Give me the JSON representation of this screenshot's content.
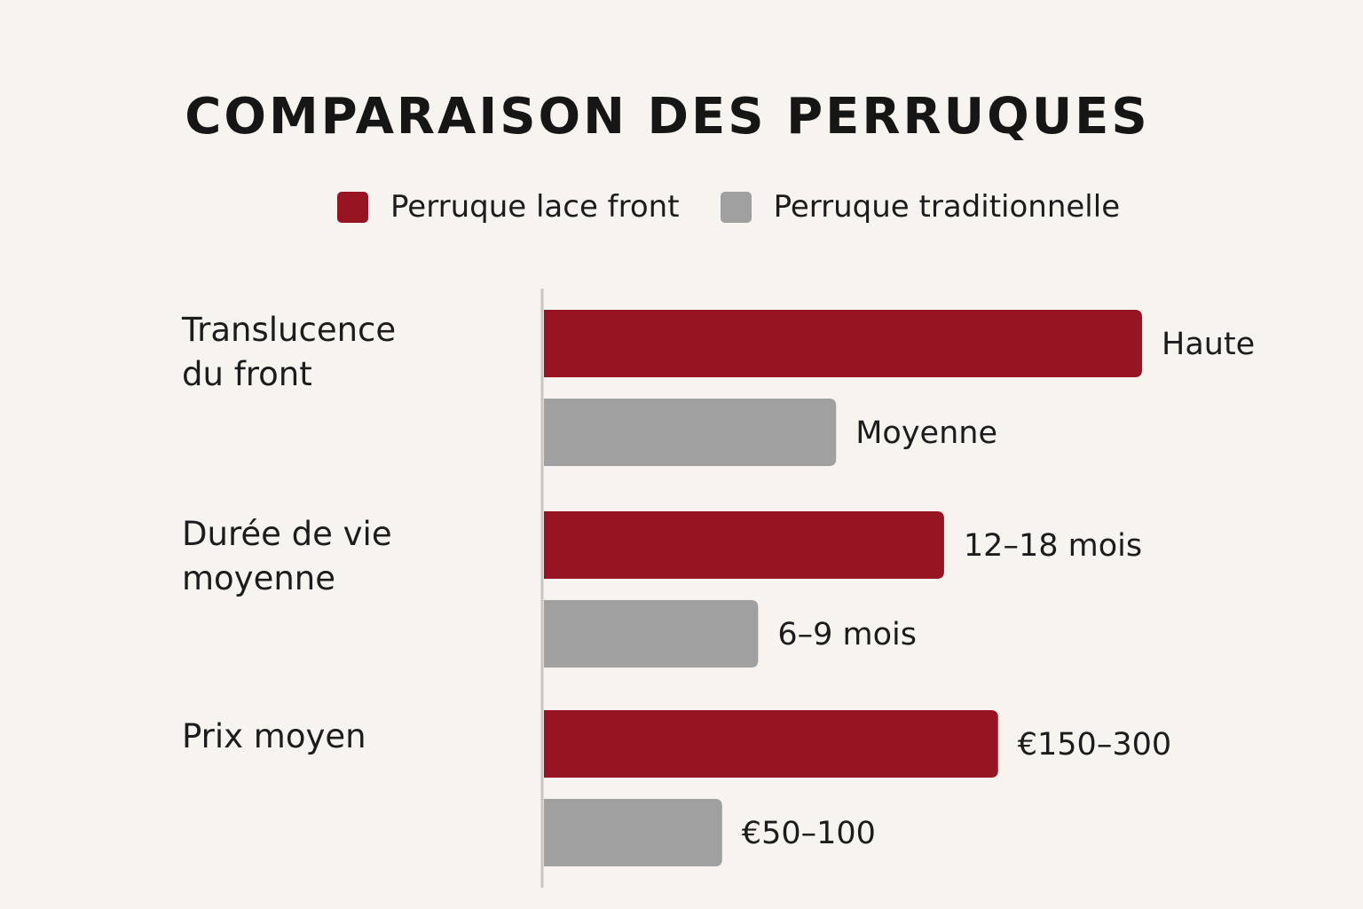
{
  "colors": {
    "background": "#f7f4ef",
    "lace_front": "#971422",
    "traditional": "#a0a0a0",
    "axis": "#c9c6c1"
  },
  "chart_data": {
    "type": "bar",
    "orientation": "horizontal",
    "title": "COMPARAISON DES PERRUQUES",
    "legend_position": "top",
    "grid": false,
    "categories": [
      [
        "Translucence",
        "du front"
      ],
      [
        "Durée de vie",
        "moyenne"
      ],
      [
        "Prix moyen"
      ]
    ],
    "series": [
      {
        "name": "Perruque lace front",
        "color": "#971422",
        "values": [
          100,
          67,
          76
        ],
        "labels": [
          "Haute",
          "12–18 mois",
          "€150–300"
        ]
      },
      {
        "name": "Perruque traditionnelle",
        "color": "#a0a0a0",
        "values": [
          49,
          36,
          30
        ],
        "labels": [
          "Moyenne",
          "6–9 mois",
          "€50–100"
        ]
      }
    ],
    "xlim": [
      0,
      100
    ]
  }
}
